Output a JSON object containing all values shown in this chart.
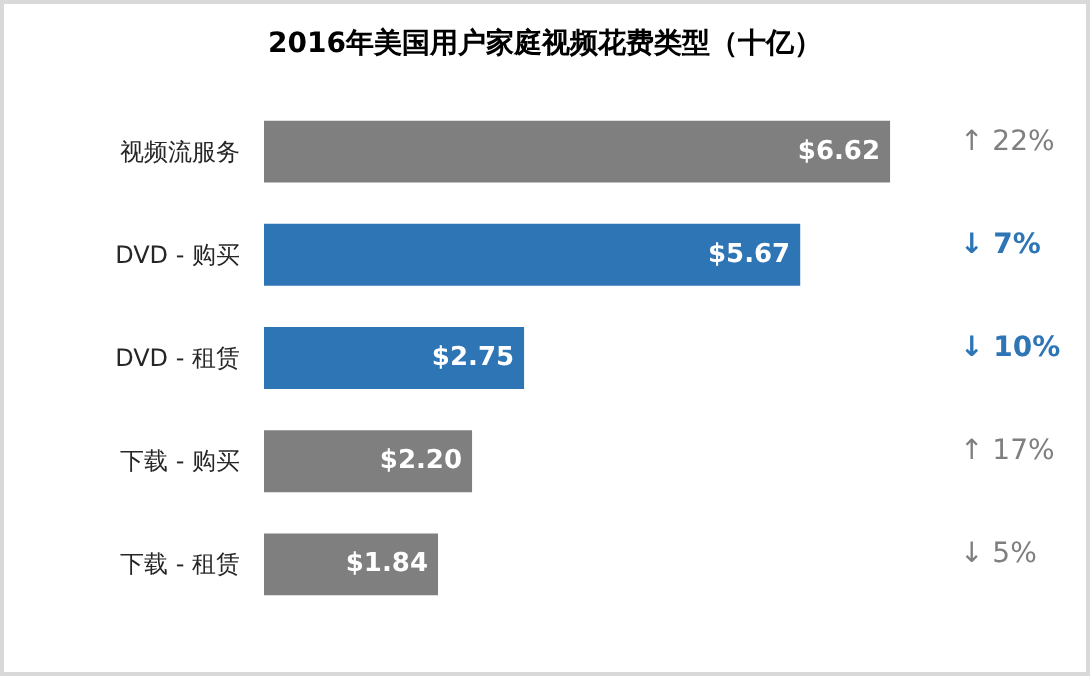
{
  "chart_data": {
    "type": "bar",
    "orientation": "horizontal",
    "title": "2016年美国用户家庭视频花费类型（十亿）",
    "categories": [
      "视频流服务",
      "DVD - 购买",
      "DVD - 租赁",
      "下载 - 购买",
      "下载 - 租赁"
    ],
    "values": [
      6.62,
      5.67,
      2.75,
      2.2,
      1.84
    ],
    "colors": [
      "#7f7f7f",
      "#2e75b6",
      "#2e75b6",
      "#7f7f7f",
      "#7f7f7f"
    ],
    "value_labels": [
      "$6.62",
      "$5.67",
      "$2.75",
      "$2.20",
      "$1.84"
    ],
    "annotations": [
      "↑ 22%",
      "↓ 7%",
      "↓ 10%",
      "↑ 17%",
      "↓ 5%"
    ]
  }
}
